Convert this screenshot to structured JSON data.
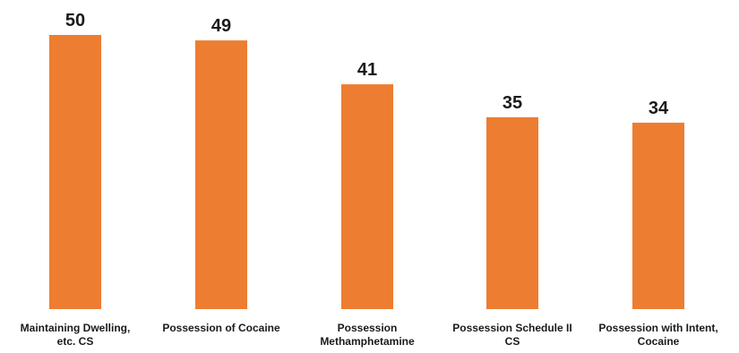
{
  "chart_data": {
    "type": "bar",
    "categories": [
      [
        "Maintaining Dwelling,",
        "etc. CS"
      ],
      [
        "Possession of Cocaine"
      ],
      [
        "Possession",
        "Methamphetamine"
      ],
      [
        "Possession Schedule II",
        "CS"
      ],
      [
        "Possession with Intent,",
        "Cocaine"
      ]
    ],
    "values": [
      50,
      49,
      41,
      35,
      34
    ],
    "ylim": [
      0,
      50
    ],
    "bar_color": "#ED7D31",
    "grid": false,
    "legend": "none"
  }
}
